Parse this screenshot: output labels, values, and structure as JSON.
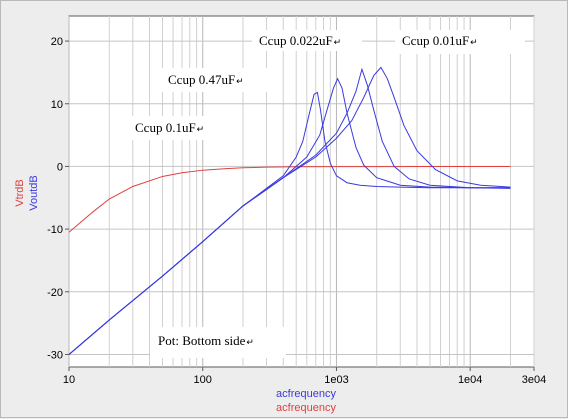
{
  "chart_data": {
    "type": "line",
    "x_scale": "log",
    "xlim": [
      10,
      30000
    ],
    "ylim": [
      -32,
      24
    ],
    "grid": true,
    "x_ticks": [
      {
        "value": 10,
        "label": "10"
      },
      {
        "value": 100,
        "label": "100"
      },
      {
        "value": 1000,
        "label": "1e03"
      },
      {
        "value": 10000,
        "label": "1e04"
      },
      {
        "value": 30000,
        "label": "3e04"
      }
    ],
    "y_ticks": [
      {
        "value": 20,
        "label": "20"
      },
      {
        "value": 10,
        "label": "10"
      },
      {
        "value": 0,
        "label": "0"
      },
      {
        "value": -10,
        "label": "-10"
      },
      {
        "value": -20,
        "label": "-20"
      },
      {
        "value": -30,
        "label": "-30"
      }
    ],
    "xlabels": [
      {
        "text": "acfrequency",
        "color": "#3a3adf"
      },
      {
        "text": "acfrequency",
        "color": "#e04040"
      }
    ],
    "ylabels": [
      {
        "text": "VtrdB",
        "color": "#e04040"
      },
      {
        "text": "VoutdB",
        "color": "#3a3adf"
      }
    ],
    "series": [
      {
        "name": "VtrdB",
        "color": "#e04040",
        "x": [
          10,
          15,
          20,
          30,
          50,
          70,
          100,
          150,
          200,
          300,
          500,
          1000,
          5000,
          20000
        ],
        "y": [
          -10.5,
          -7.3,
          -5.2,
          -3.2,
          -1.6,
          -1.0,
          -0.6,
          -0.35,
          -0.22,
          -0.12,
          -0.06,
          -0.03,
          -0.02,
          -0.02
        ]
      },
      {
        "name": "Ccup 0.47uF",
        "color": "#3a3adf",
        "x": [
          10,
          20,
          50,
          100,
          200,
          400,
          500,
          560,
          620,
          680,
          720,
          760,
          820,
          900,
          1000,
          1200,
          1500,
          2000,
          3000,
          5000,
          10000,
          20000
        ],
        "y": [
          -30,
          -24.5,
          -17.5,
          -12,
          -6.3,
          -1.5,
          1.5,
          4,
          8,
          11.5,
          11.8,
          9,
          4,
          0.5,
          -1.5,
          -2.6,
          -3.0,
          -3.2,
          -3.3,
          -3.4,
          -3.4,
          -3.4
        ]
      },
      {
        "name": "Ccup 0.1uF",
        "color": "#3a3adf",
        "x": [
          10,
          20,
          50,
          100,
          200,
          400,
          600,
          750,
          850,
          950,
          1020,
          1100,
          1200,
          1400,
          1600,
          2000,
          3000,
          5000,
          10000,
          20000
        ],
        "y": [
          -30,
          -24.5,
          -17.5,
          -12,
          -6.3,
          -1.8,
          1.5,
          5,
          9,
          12.5,
          14,
          12.5,
          8.5,
          3,
          0.2,
          -1.8,
          -3.0,
          -3.3,
          -3.4,
          -3.4
        ]
      },
      {
        "name": "Ccup 0.022uF",
        "color": "#3a3adf",
        "x": [
          10,
          20,
          50,
          100,
          200,
          400,
          700,
          1000,
          1200,
          1400,
          1550,
          1700,
          1900,
          2200,
          2700,
          3500,
          5000,
          10000,
          20000
        ],
        "y": [
          -30,
          -24.5,
          -17.5,
          -12,
          -6.3,
          -1.8,
          1.8,
          5.3,
          8.5,
          12,
          15.5,
          13,
          9,
          4,
          0,
          -2,
          -3,
          -3.4,
          -3.5
        ]
      },
      {
        "name": "Ccup 0.01uF",
        "color": "#3a3adf",
        "x": [
          10,
          20,
          50,
          100,
          200,
          400,
          700,
          1000,
          1300,
          1600,
          1900,
          2150,
          2400,
          2700,
          3200,
          4000,
          5500,
          8000,
          12000,
          20000
        ],
        "y": [
          -30,
          -24.5,
          -17.5,
          -12,
          -6.3,
          -1.8,
          1.5,
          4.5,
          7.3,
          11,
          14.5,
          15.8,
          14,
          11,
          6.5,
          2.5,
          -0.5,
          -2.3,
          -3.0,
          -3.3
        ]
      }
    ],
    "annotations": [
      {
        "text": "Ccup 0.022uF",
        "mark": "↵"
      },
      {
        "text": "Ccup 0.01uF",
        "mark": "↵"
      },
      {
        "text": "Ccup 0.47uF",
        "mark": "↵"
      },
      {
        "text": "Ccup 0.1uF",
        "mark": "↵"
      },
      {
        "text": "Pot: Bottom side",
        "mark": "↵"
      }
    ]
  }
}
